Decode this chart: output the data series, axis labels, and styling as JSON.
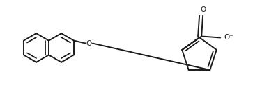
{
  "bg_color": "#ffffff",
  "line_color": "#1a1a1a",
  "lw": 1.4,
  "figsize": [
    3.86,
    1.43
  ],
  "dpi": 100,
  "xlim": [
    0,
    386
  ],
  "ylim": [
    0,
    143
  ]
}
